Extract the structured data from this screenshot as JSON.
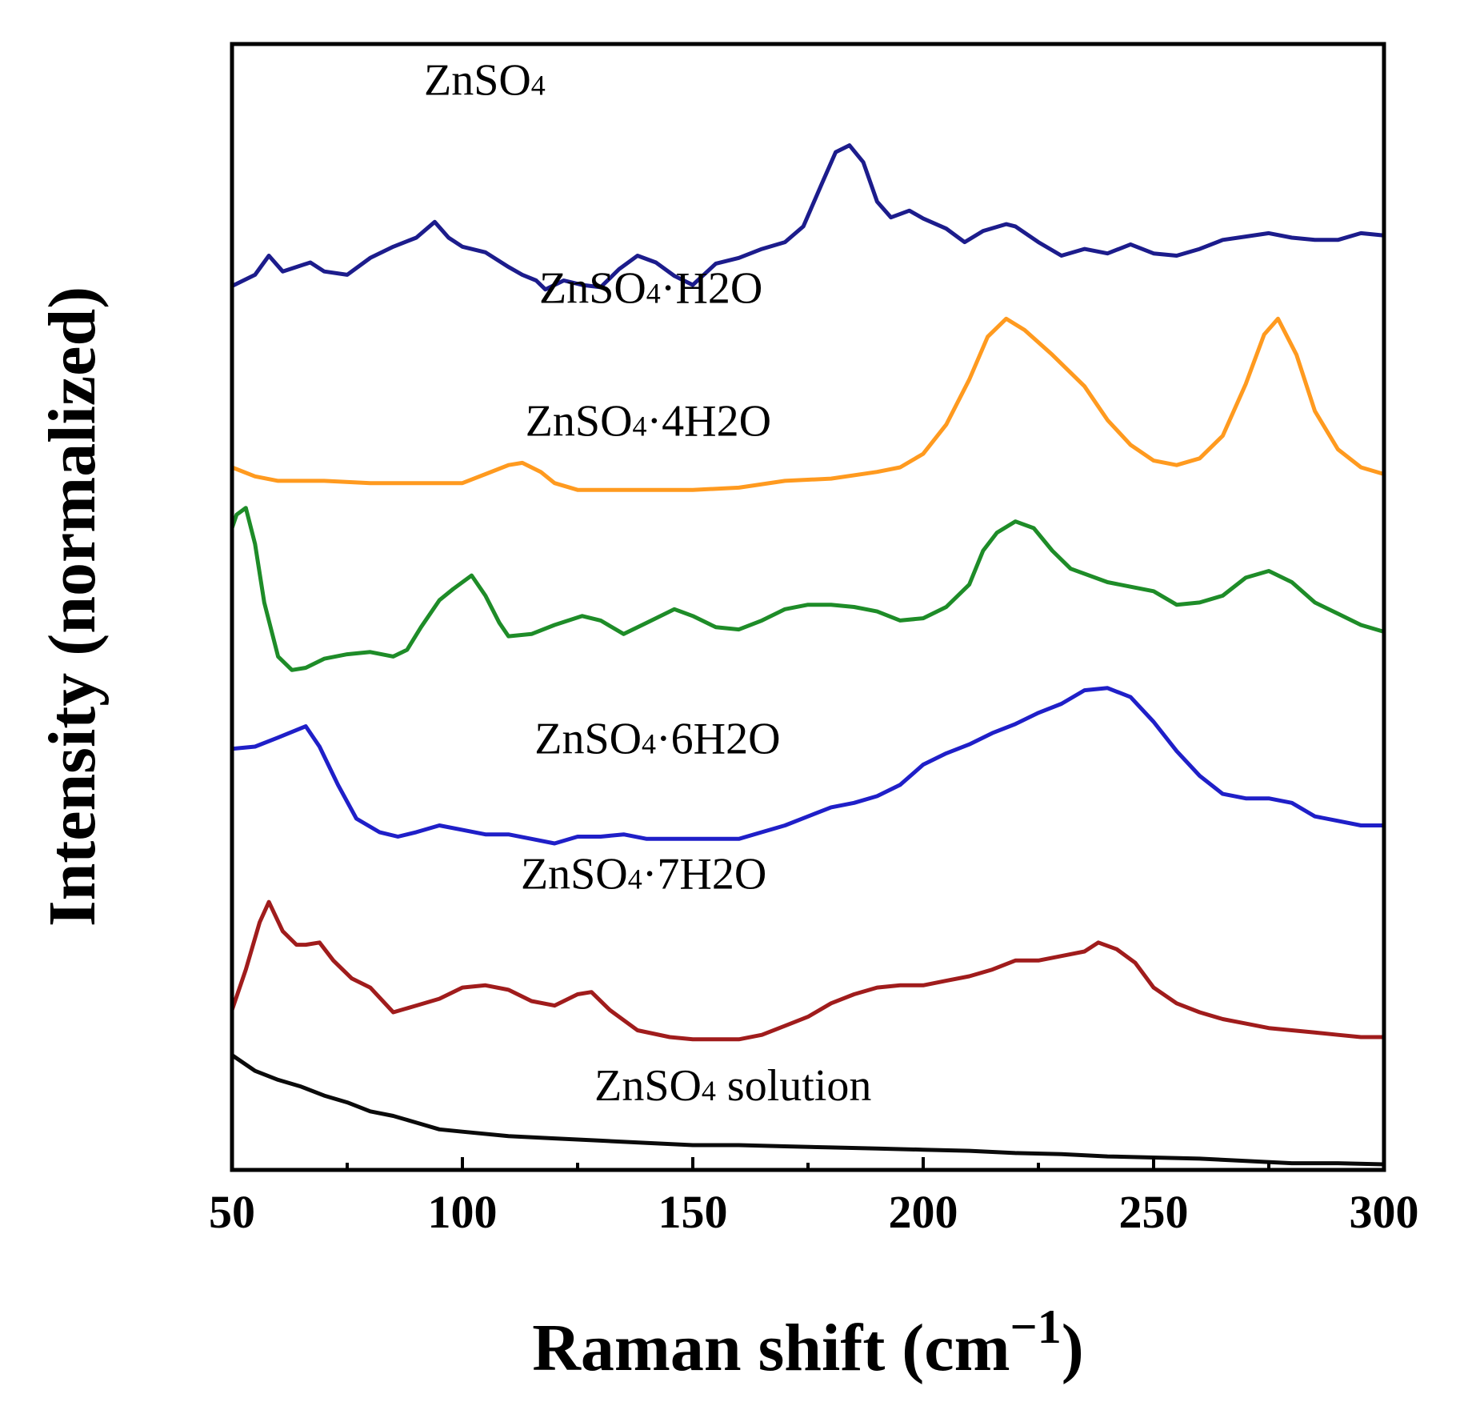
{
  "chart_data": {
    "type": "line",
    "title": "",
    "xlabel": "Raman shift (cm",
    "xlabel_superscript": "−1",
    "xlabel_close": ")",
    "ylabel": "Intensity (normalized)",
    "xlim": [
      50,
      300
    ],
    "ylim": [
      0,
      10
    ],
    "x_ticks": [
      50,
      100,
      150,
      200,
      250,
      300
    ],
    "x_tick_labels": [
      "50",
      "100",
      "150",
      "200",
      "250",
      "300"
    ],
    "y_ticks_shown": false,
    "grid": false,
    "legend": "none (inline labels)",
    "series": [
      {
        "name": "ZnSO4",
        "label_main": "ZnSO",
        "label_sub": "4",
        "label_rest": "",
        "label_at": [
          50,
          9.55
        ],
        "color": "#1c1c8c",
        "points": [
          [
            50,
            7.85
          ],
          [
            55,
            7.95
          ],
          [
            58,
            8.12
          ],
          [
            61,
            7.98
          ],
          [
            64,
            8.02
          ],
          [
            67,
            8.06
          ],
          [
            70,
            7.98
          ],
          [
            75,
            7.95
          ],
          [
            80,
            8.1
          ],
          [
            85,
            8.2
          ],
          [
            90,
            8.28
          ],
          [
            94,
            8.42
          ],
          [
            97,
            8.28
          ],
          [
            100,
            8.2
          ],
          [
            105,
            8.15
          ],
          [
            110,
            8.02
          ],
          [
            113,
            7.95
          ],
          [
            116,
            7.9
          ],
          [
            118,
            7.82
          ],
          [
            122,
            7.9
          ],
          [
            126,
            7.86
          ],
          [
            130,
            7.84
          ],
          [
            134,
            8.0
          ],
          [
            138,
            8.12
          ],
          [
            142,
            8.06
          ],
          [
            146,
            7.94
          ],
          [
            150,
            7.86
          ],
          [
            155,
            8.05
          ],
          [
            160,
            8.1
          ],
          [
            165,
            8.18
          ],
          [
            170,
            8.24
          ],
          [
            174,
            8.38
          ],
          [
            178,
            8.76
          ],
          [
            181,
            9.04
          ],
          [
            184,
            9.1
          ],
          [
            187,
            8.95
          ],
          [
            190,
            8.6
          ],
          [
            193,
            8.46
          ],
          [
            197,
            8.52
          ],
          [
            200,
            8.45
          ],
          [
            205,
            8.36
          ],
          [
            209,
            8.24
          ],
          [
            213,
            8.34
          ],
          [
            218,
            8.4
          ],
          [
            220,
            8.38
          ],
          [
            225,
            8.24
          ],
          [
            230,
            8.12
          ],
          [
            235,
            8.18
          ],
          [
            240,
            8.14
          ],
          [
            245,
            8.22
          ],
          [
            250,
            8.14
          ],
          [
            255,
            8.12
          ],
          [
            260,
            8.18
          ],
          [
            265,
            8.26
          ],
          [
            270,
            8.29
          ],
          [
            275,
            8.32
          ],
          [
            280,
            8.28
          ],
          [
            285,
            8.26
          ],
          [
            290,
            8.26
          ],
          [
            295,
            8.32
          ],
          [
            300,
            8.3
          ]
        ]
      },
      {
        "name": "ZnSO4·H2O",
        "label_main": "ZnSO",
        "label_sub": "4",
        "label_rest": "·H2O",
        "label_at": [
          75,
          7.7
        ],
        "color": "#ff9a1f",
        "points": [
          [
            50,
            6.24
          ],
          [
            55,
            6.16
          ],
          [
            60,
            6.12
          ],
          [
            70,
            6.12
          ],
          [
            80,
            6.1
          ],
          [
            90,
            6.1
          ],
          [
            100,
            6.1
          ],
          [
            105,
            6.18
          ],
          [
            110,
            6.26
          ],
          [
            113,
            6.28
          ],
          [
            117,
            6.2
          ],
          [
            120,
            6.1
          ],
          [
            125,
            6.04
          ],
          [
            135,
            6.04
          ],
          [
            150,
            6.04
          ],
          [
            160,
            6.06
          ],
          [
            170,
            6.12
          ],
          [
            180,
            6.14
          ],
          [
            190,
            6.2
          ],
          [
            195,
            6.24
          ],
          [
            200,
            6.36
          ],
          [
            205,
            6.62
          ],
          [
            210,
            7.02
          ],
          [
            214,
            7.4
          ],
          [
            218,
            7.56
          ],
          [
            222,
            7.46
          ],
          [
            228,
            7.24
          ],
          [
            235,
            6.96
          ],
          [
            240,
            6.66
          ],
          [
            245,
            6.44
          ],
          [
            250,
            6.3
          ],
          [
            255,
            6.26
          ],
          [
            260,
            6.32
          ],
          [
            265,
            6.52
          ],
          [
            270,
            6.98
          ],
          [
            274,
            7.42
          ],
          [
            277,
            7.56
          ],
          [
            281,
            7.24
          ],
          [
            285,
            6.74
          ],
          [
            290,
            6.4
          ],
          [
            295,
            6.24
          ],
          [
            300,
            6.18
          ]
        ]
      },
      {
        "name": "ZnSO4·4H2O",
        "label_main": "ZnSO",
        "label_sub": "4",
        "label_rest": "·4H2O",
        "label_at": [
          72,
          6.52
        ],
        "color": "#1e8c28",
        "points": [
          [
            50,
            5.7
          ],
          [
            51,
            5.82
          ],
          [
            53,
            5.88
          ],
          [
            55,
            5.56
          ],
          [
            57,
            5.04
          ],
          [
            60,
            4.56
          ],
          [
            63,
            4.44
          ],
          [
            66,
            4.46
          ],
          [
            70,
            4.54
          ],
          [
            75,
            4.58
          ],
          [
            80,
            4.6
          ],
          [
            85,
            4.56
          ],
          [
            88,
            4.62
          ],
          [
            91,
            4.82
          ],
          [
            95,
            5.06
          ],
          [
            98,
            5.16
          ],
          [
            102,
            5.28
          ],
          [
            105,
            5.1
          ],
          [
            108,
            4.86
          ],
          [
            110,
            4.74
          ],
          [
            115,
            4.76
          ],
          [
            120,
            4.84
          ],
          [
            126,
            4.92
          ],
          [
            130,
            4.88
          ],
          [
            135,
            4.76
          ],
          [
            140,
            4.86
          ],
          [
            146,
            4.98
          ],
          [
            150,
            4.92
          ],
          [
            155,
            4.82
          ],
          [
            160,
            4.8
          ],
          [
            165,
            4.88
          ],
          [
            170,
            4.98
          ],
          [
            175,
            5.02
          ],
          [
            180,
            5.02
          ],
          [
            185,
            5.0
          ],
          [
            190,
            4.96
          ],
          [
            195,
            4.88
          ],
          [
            200,
            4.9
          ],
          [
            205,
            5.0
          ],
          [
            210,
            5.2
          ],
          [
            213,
            5.5
          ],
          [
            216,
            5.66
          ],
          [
            220,
            5.76
          ],
          [
            224,
            5.7
          ],
          [
            228,
            5.5
          ],
          [
            232,
            5.34
          ],
          [
            240,
            5.22
          ],
          [
            245,
            5.18
          ],
          [
            250,
            5.14
          ],
          [
            255,
            5.02
          ],
          [
            260,
            5.04
          ],
          [
            265,
            5.1
          ],
          [
            270,
            5.26
          ],
          [
            275,
            5.32
          ],
          [
            280,
            5.22
          ],
          [
            285,
            5.04
          ],
          [
            290,
            4.94
          ],
          [
            295,
            4.84
          ],
          [
            300,
            4.78
          ]
        ]
      },
      {
        "name": "ZnSO4·6H2O",
        "label_main": "ZnSO",
        "label_sub": "4",
        "label_rest": "·6H2O",
        "label_at": [
          74,
          3.7
        ],
        "color": "#1f1fc8",
        "points": [
          [
            50,
            3.74
          ],
          [
            55,
            3.76
          ],
          [
            60,
            3.84
          ],
          [
            66,
            3.94
          ],
          [
            69,
            3.76
          ],
          [
            73,
            3.42
          ],
          [
            77,
            3.12
          ],
          [
            82,
            3.0
          ],
          [
            86,
            2.96
          ],
          [
            90,
            3.0
          ],
          [
            95,
            3.06
          ],
          [
            100,
            3.02
          ],
          [
            105,
            2.98
          ],
          [
            110,
            2.98
          ],
          [
            115,
            2.94
          ],
          [
            120,
            2.9
          ],
          [
            125,
            2.96
          ],
          [
            130,
            2.96
          ],
          [
            135,
            2.98
          ],
          [
            140,
            2.94
          ],
          [
            145,
            2.94
          ],
          [
            150,
            2.94
          ],
          [
            155,
            2.94
          ],
          [
            160,
            2.94
          ],
          [
            165,
            3.0
          ],
          [
            170,
            3.06
          ],
          [
            175,
            3.14
          ],
          [
            180,
            3.22
          ],
          [
            185,
            3.26
          ],
          [
            190,
            3.32
          ],
          [
            195,
            3.42
          ],
          [
            200,
            3.6
          ],
          [
            205,
            3.7
          ],
          [
            210,
            3.78
          ],
          [
            215,
            3.88
          ],
          [
            220,
            3.96
          ],
          [
            225,
            4.06
          ],
          [
            230,
            4.14
          ],
          [
            235,
            4.26
          ],
          [
            240,
            4.28
          ],
          [
            245,
            4.2
          ],
          [
            250,
            3.98
          ],
          [
            255,
            3.72
          ],
          [
            260,
            3.5
          ],
          [
            265,
            3.34
          ],
          [
            270,
            3.3
          ],
          [
            275,
            3.3
          ],
          [
            280,
            3.26
          ],
          [
            285,
            3.14
          ],
          [
            290,
            3.1
          ],
          [
            295,
            3.06
          ],
          [
            300,
            3.06
          ]
        ]
      },
      {
        "name": "ZnSO4·7H2O",
        "label_main": "ZnSO",
        "label_sub": "4",
        "label_rest": "·7H2O",
        "label_at": [
          71,
          2.5
        ],
        "color": "#a01c1c",
        "points": [
          [
            50,
            1.42
          ],
          [
            53,
            1.78
          ],
          [
            56,
            2.2
          ],
          [
            58,
            2.38
          ],
          [
            61,
            2.12
          ],
          [
            64,
            2.0
          ],
          [
            66,
            2.0
          ],
          [
            69,
            2.02
          ],
          [
            72,
            1.86
          ],
          [
            76,
            1.7
          ],
          [
            80,
            1.62
          ],
          [
            85,
            1.4
          ],
          [
            90,
            1.46
          ],
          [
            95,
            1.52
          ],
          [
            100,
            1.62
          ],
          [
            105,
            1.64
          ],
          [
            110,
            1.6
          ],
          [
            115,
            1.5
          ],
          [
            120,
            1.46
          ],
          [
            125,
            1.56
          ],
          [
            128,
            1.58
          ],
          [
            132,
            1.42
          ],
          [
            138,
            1.24
          ],
          [
            145,
            1.18
          ],
          [
            150,
            1.16
          ],
          [
            155,
            1.16
          ],
          [
            160,
            1.16
          ],
          [
            165,
            1.2
          ],
          [
            170,
            1.28
          ],
          [
            175,
            1.36
          ],
          [
            180,
            1.48
          ],
          [
            185,
            1.56
          ],
          [
            190,
            1.62
          ],
          [
            195,
            1.64
          ],
          [
            200,
            1.64
          ],
          [
            205,
            1.68
          ],
          [
            210,
            1.72
          ],
          [
            215,
            1.78
          ],
          [
            220,
            1.86
          ],
          [
            225,
            1.86
          ],
          [
            230,
            1.9
          ],
          [
            235,
            1.94
          ],
          [
            238,
            2.02
          ],
          [
            242,
            1.96
          ],
          [
            246,
            1.84
          ],
          [
            250,
            1.62
          ],
          [
            255,
            1.48
          ],
          [
            260,
            1.4
          ],
          [
            265,
            1.34
          ],
          [
            270,
            1.3
          ],
          [
            275,
            1.26
          ],
          [
            280,
            1.24
          ],
          [
            285,
            1.22
          ],
          [
            290,
            1.2
          ],
          [
            295,
            1.18
          ],
          [
            300,
            1.18
          ]
        ]
      },
      {
        "name": "ZnSO4 solution",
        "label_main": "ZnSO",
        "label_sub": "4",
        "label_rest": " solution",
        "label_at": [
          87,
          0.62
        ],
        "color": "#0a0a0a",
        "points": [
          [
            50,
            1.02
          ],
          [
            55,
            0.88
          ],
          [
            60,
            0.8
          ],
          [
            65,
            0.74
          ],
          [
            70,
            0.66
          ],
          [
            75,
            0.6
          ],
          [
            80,
            0.52
          ],
          [
            85,
            0.48
          ],
          [
            90,
            0.42
          ],
          [
            95,
            0.36
          ],
          [
            100,
            0.34
          ],
          [
            110,
            0.3
          ],
          [
            120,
            0.28
          ],
          [
            130,
            0.26
          ],
          [
            140,
            0.24
          ],
          [
            150,
            0.22
          ],
          [
            160,
            0.22
          ],
          [
            170,
            0.21
          ],
          [
            180,
            0.2
          ],
          [
            190,
            0.19
          ],
          [
            200,
            0.18
          ],
          [
            210,
            0.17
          ],
          [
            220,
            0.15
          ],
          [
            230,
            0.14
          ],
          [
            240,
            0.12
          ],
          [
            250,
            0.11
          ],
          [
            260,
            0.1
          ],
          [
            270,
            0.08
          ],
          [
            280,
            0.06
          ],
          [
            290,
            0.06
          ],
          [
            300,
            0.05
          ]
        ]
      }
    ]
  }
}
